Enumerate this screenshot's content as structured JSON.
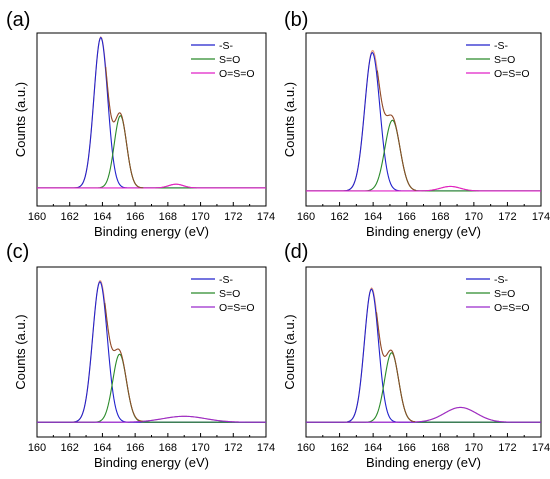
{
  "chart_data": [
    {
      "type": "line",
      "panel_label": "(a)",
      "xlabel": "Binding energy (eV)",
      "ylabel": "Counts (a.u.)",
      "xlim": [
        160,
        174
      ],
      "x_ticks": [
        "160",
        "162",
        "164",
        "166",
        "168",
        "170",
        "172",
        "174"
      ],
      "ylim": [
        0,
        1.15
      ],
      "grid": false,
      "legend_position": "top-right",
      "baseline": 0.12,
      "series": [
        {
          "name": "-S-",
          "color": "#2222cc",
          "peak": {
            "center": 163.9,
            "sigma": 0.42,
            "height": 1.0
          }
        },
        {
          "name": "S=O",
          "color": "#2a8a2a",
          "peak": {
            "center": 165.1,
            "sigma": 0.38,
            "height": 0.48
          }
        },
        {
          "name": "O=S=O",
          "color": "#e020c8",
          "peak": {
            "center": 168.5,
            "sigma": 0.45,
            "height": 0.025
          }
        }
      ],
      "envelope_color": "#e89a7a",
      "overlay_color": "#8a4a2a"
    },
    {
      "type": "line",
      "panel_label": "(b)",
      "xlabel": "Binding energy (eV)",
      "ylabel": "Counts (a.u.)",
      "xlim": [
        160,
        174
      ],
      "x_ticks": [
        "160",
        "162",
        "164",
        "166",
        "168",
        "170",
        "172",
        "174"
      ],
      "ylim": [
        0,
        1.15
      ],
      "grid": false,
      "legend_position": "top-right",
      "baseline": 0.1,
      "series": [
        {
          "name": "-S-",
          "color": "#2222cc",
          "peak": {
            "center": 163.95,
            "sigma": 0.45,
            "height": 0.92
          }
        },
        {
          "name": "S=O",
          "color": "#2a8a2a",
          "peak": {
            "center": 165.15,
            "sigma": 0.45,
            "height": 0.47
          }
        },
        {
          "name": "O=S=O",
          "color": "#e020c8",
          "peak": {
            "center": 168.6,
            "sigma": 0.6,
            "height": 0.03
          }
        }
      ],
      "envelope_color": "#e89a7a",
      "overlay_color": "#8a4a2a"
    },
    {
      "type": "line",
      "panel_label": "(c)",
      "xlabel": "Binding energy (eV)",
      "ylabel": "Counts (a.u.)",
      "xlim": [
        160,
        174
      ],
      "x_ticks": [
        "160",
        "162",
        "164",
        "166",
        "168",
        "170",
        "172",
        "174"
      ],
      "ylim": [
        0,
        1.15
      ],
      "grid": false,
      "legend_position": "top-right",
      "baseline": 0.1,
      "series": [
        {
          "name": "-S-",
          "color": "#2222cc",
          "peak": {
            "center": 163.85,
            "sigma": 0.45,
            "height": 0.95
          }
        },
        {
          "name": "S=O",
          "color": "#2a8a2a",
          "peak": {
            "center": 165.05,
            "sigma": 0.42,
            "height": 0.46
          }
        },
        {
          "name": "O=S=O",
          "color": "#9a2acc",
          "peak": {
            "center": 169.0,
            "sigma": 1.3,
            "height": 0.04
          }
        }
      ],
      "envelope_color": "#e89a7a",
      "overlay_color": "#8a4a2a"
    },
    {
      "type": "line",
      "panel_label": "(d)",
      "xlabel": "Binding energy (eV)",
      "ylabel": "Counts (a.u.)",
      "xlim": [
        160,
        174
      ],
      "x_ticks": [
        "160",
        "162",
        "164",
        "166",
        "168",
        "170",
        "172",
        "174"
      ],
      "ylim": [
        0,
        1.15
      ],
      "grid": false,
      "legend_position": "top-right",
      "baseline": 0.1,
      "series": [
        {
          "name": "-S-",
          "color": "#2222cc",
          "peak": {
            "center": 163.9,
            "sigma": 0.42,
            "height": 0.9
          }
        },
        {
          "name": "S=O",
          "color": "#2a8a2a",
          "peak": {
            "center": 165.1,
            "sigma": 0.42,
            "height": 0.47
          }
        },
        {
          "name": "O=S=O",
          "color": "#9a2acc",
          "peak": {
            "center": 169.2,
            "sigma": 0.95,
            "height": 0.1
          }
        }
      ],
      "envelope_color": "#e89a7a",
      "overlay_color": "#8a4a2a"
    }
  ]
}
